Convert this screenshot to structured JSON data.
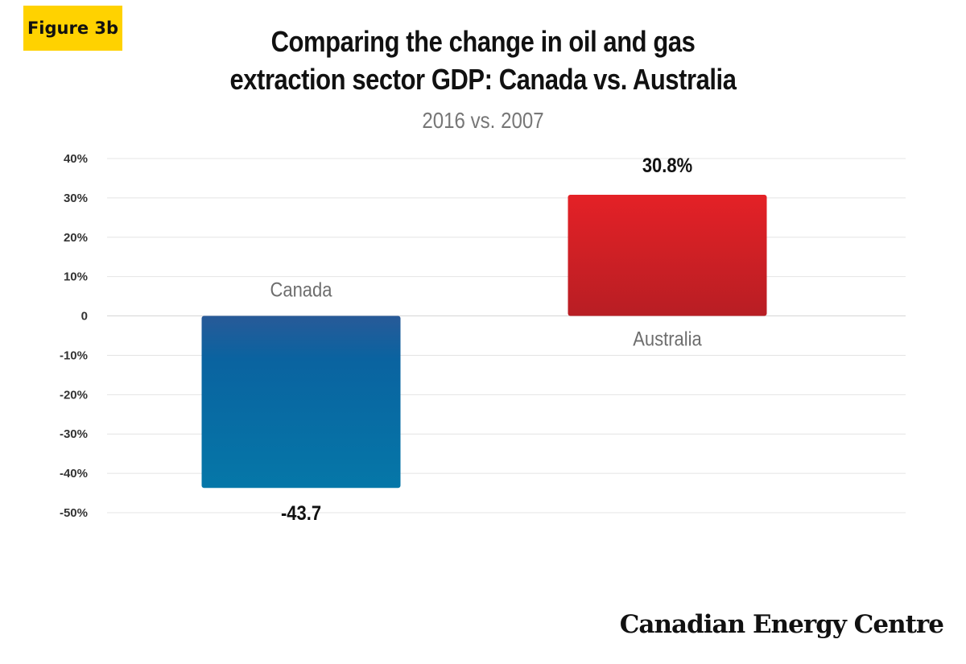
{
  "badge": "Figure 3b",
  "title_line1": "Comparing the change in oil and gas",
  "title_line2": "extraction sector GDP: Canada vs. Australia",
  "subtitle": "2016 vs. 2007",
  "brand": "Canadian Energy Centre",
  "chart_data": {
    "type": "bar",
    "categories": [
      "Canada",
      "Australia"
    ],
    "values": [
      -43.7,
      30.8
    ],
    "data_labels": [
      "-43.7",
      "30.8%"
    ],
    "ylim": [
      -50,
      40
    ],
    "yticks": [
      40,
      30,
      20,
      10,
      0,
      -10,
      -20,
      -30,
      -40,
      -50
    ],
    "ytick_labels": [
      "40%",
      "30%",
      "20%",
      "10%",
      "0",
      "-10%",
      "-20%",
      "-30%",
      "-40%",
      "-50%"
    ],
    "grid": true,
    "colors": {
      "Canada": "#0a6fa4",
      "Australia": "#d42024"
    }
  }
}
